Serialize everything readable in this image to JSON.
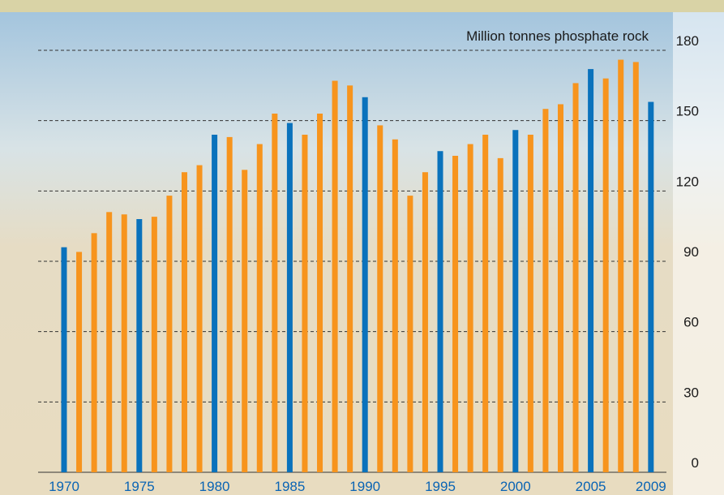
{
  "chart_data": {
    "type": "bar",
    "y_label": "Million tonnes phosphate rock",
    "categories": [
      "1970",
      null,
      null,
      null,
      null,
      "1975",
      null,
      null,
      null,
      null,
      "1980",
      null,
      null,
      null,
      null,
      "1985",
      null,
      null,
      null,
      null,
      "1990",
      null,
      null,
      null,
      null,
      "1995",
      null,
      null,
      null,
      null,
      "2000",
      null,
      null,
      null,
      null,
      "2005",
      null,
      null,
      null,
      "2009"
    ],
    "values": [
      96,
      94,
      102,
      111,
      110,
      108,
      109,
      118,
      128,
      131,
      144,
      143,
      129,
      140,
      153,
      149,
      144,
      153,
      167,
      165,
      160,
      148,
      142,
      118,
      128,
      137,
      135,
      140,
      144,
      134,
      146,
      144,
      155,
      157,
      166,
      172,
      168,
      176,
      175,
      158
    ],
    "color": "#f7941d",
    "highlight_color": "#0a72bc",
    "ylim": [
      0,
      180
    ],
    "yticks": [
      0,
      30,
      60,
      90,
      120,
      150,
      180
    ],
    "grid": true
  }
}
